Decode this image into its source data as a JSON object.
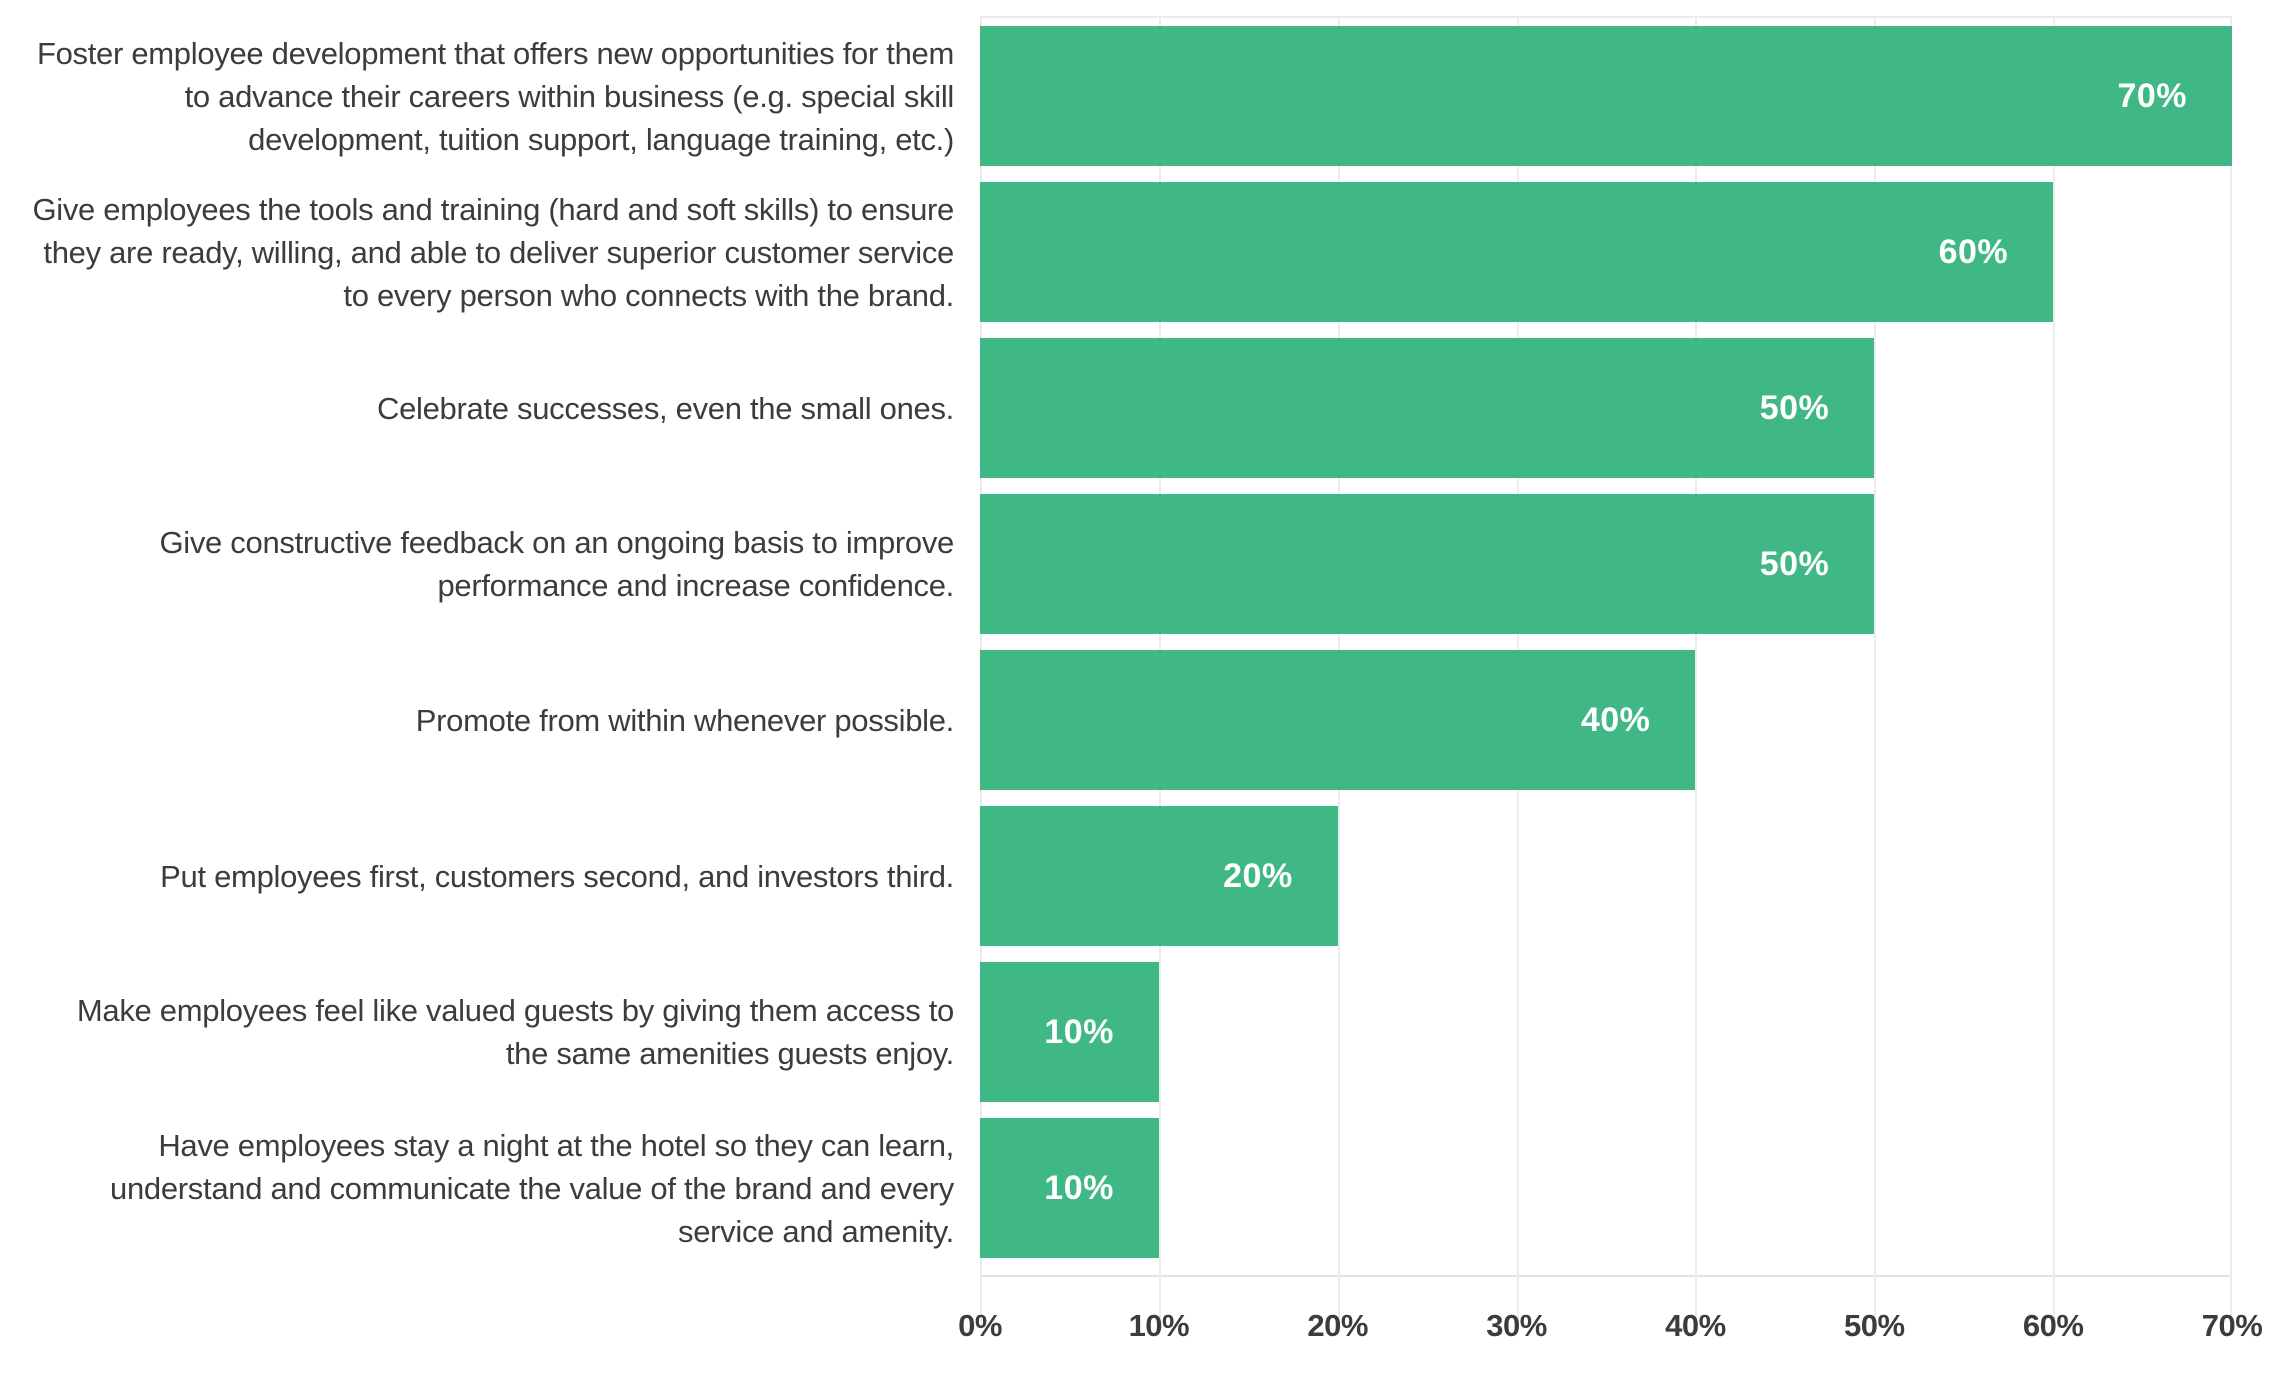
{
  "chart_data": {
    "type": "bar",
    "orientation": "horizontal",
    "title": "",
    "xlabel": "",
    "ylabel": "",
    "xlim": [
      0,
      70
    ],
    "x_tick_labels": [
      "0%",
      "10%",
      "20%",
      "30%",
      "40%",
      "50%",
      "60%",
      "70%"
    ],
    "grid": "vertical-gridlines-only",
    "legend": "none",
    "bar_color": "#3fb885",
    "category_label_color": "#3a3d40",
    "data_label_color": "#ffffff",
    "categories": [
      "Foster employee development that offers new opportunities for them to advance their careers within business (e.g. special skill development, tuition support, language training, etc.)",
      "Give employees the tools and training (hard and soft skills) to ensure they are ready, willing, and able to deliver superior customer service to every person who connects with the brand.",
      "Celebrate successes, even the small ones.",
      "Give constructive feedback on an ongoing basis to improve performance and increase confidence.",
      "Promote from within whenever possible.",
      "Put employees first, customers second, and investors third.",
      "Make employees feel like valued guests by giving them access to the same amenities guests enjoy.",
      "Have employees stay a night at the hotel so they can learn, understand and communicate the value of the brand and every service and amenity."
    ],
    "values": [
      70,
      60,
      50,
      50,
      40,
      20,
      10,
      10
    ],
    "data_labels": [
      "70%",
      "60%",
      "50%",
      "50%",
      "40%",
      "20%",
      "10%",
      "10%"
    ]
  }
}
